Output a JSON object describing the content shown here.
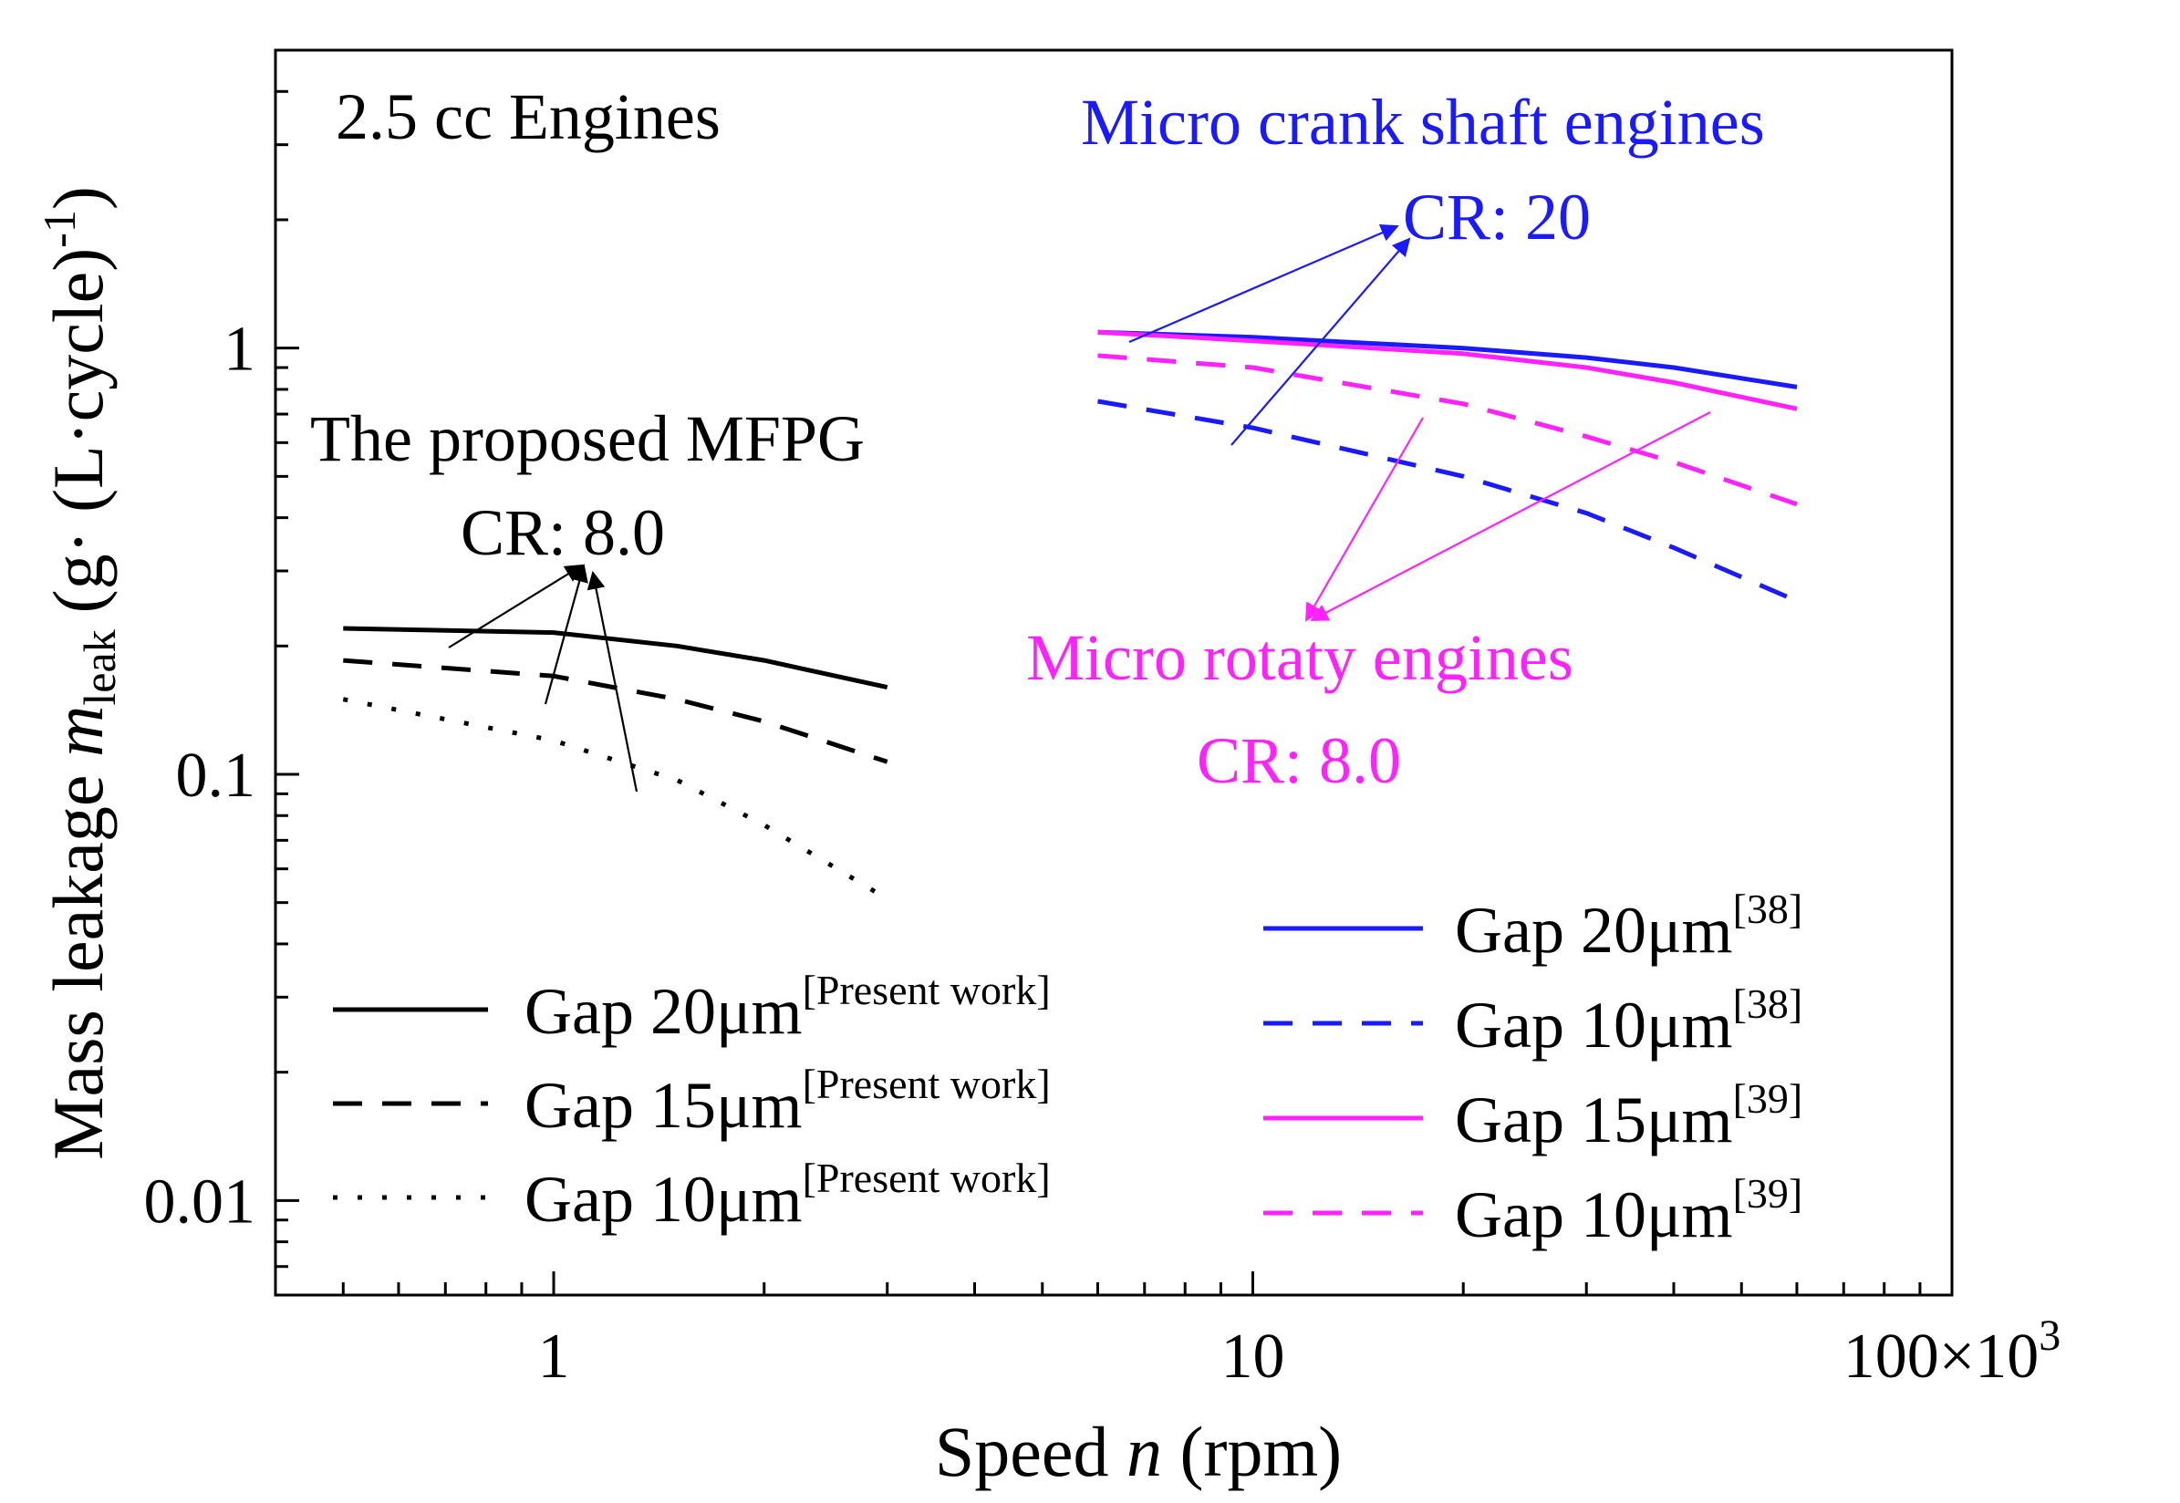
{
  "chart_data": {
    "type": "line",
    "title": "",
    "xlabel": {
      "prefix": "Speed ",
      "var": "n",
      "suffix": " (rpm)"
    },
    "ylabel": {
      "prefix": "Mass leakage ",
      "var": "m",
      "sub": "leak",
      "units": "(g· (L·cycle)",
      "units_sup": "-1",
      "units_close": ")"
    },
    "x_scale": "log",
    "y_scale": "log",
    "xlim": [
      400,
      100000
    ],
    "ylim": [
      0.006,
      5
    ],
    "x_ticks": [
      {
        "value": 1000,
        "label": "1"
      },
      {
        "value": 10000,
        "label": "10"
      },
      {
        "value": 100000,
        "label": "100×10",
        "sup": "3"
      }
    ],
    "y_ticks": [
      {
        "value": 0.01,
        "label": "0.01"
      },
      {
        "value": 0.1,
        "label": "0.1"
      },
      {
        "value": 1,
        "label": "1"
      }
    ],
    "series": [
      {
        "name": "Gap 20μm",
        "ref": "[Present work]",
        "color": "#000000",
        "style": "solid",
        "x": [
          500,
          1000,
          1500,
          2000,
          3000
        ],
        "y": [
          0.22,
          0.215,
          0.2,
          0.185,
          0.16
        ]
      },
      {
        "name": "Gap 15μm",
        "ref": "[Present work]",
        "color": "#000000",
        "style": "dashed",
        "x": [
          500,
          1000,
          1500,
          2000,
          3000
        ],
        "y": [
          0.185,
          0.17,
          0.15,
          0.133,
          0.107
        ]
      },
      {
        "name": "Gap 10μm",
        "ref": "[Present work]",
        "color": "#000000",
        "style": "dotted",
        "x": [
          500,
          1000,
          1500,
          2000,
          3000
        ],
        "y": [
          0.15,
          0.12,
          0.097,
          0.076,
          0.051
        ]
      },
      {
        "name": "Gap 20μm",
        "ref": "[38]",
        "color": "#1a1aff",
        "style": "solid",
        "x": [
          6000,
          10000,
          20000,
          30000,
          40000,
          60000
        ],
        "y": [
          1.09,
          1.06,
          1.0,
          0.95,
          0.9,
          0.81
        ]
      },
      {
        "name": "Gap 10μm",
        "ref": "[38]",
        "color": "#1a1aff",
        "style": "dashed",
        "x": [
          6000,
          10000,
          20000,
          30000,
          40000,
          60000
        ],
        "y": [
          0.75,
          0.65,
          0.5,
          0.41,
          0.34,
          0.255
        ]
      },
      {
        "name": "Gap 15μm",
        "ref": "[39]",
        "color": "#ff22ff",
        "style": "solid",
        "x": [
          6000,
          10000,
          20000,
          30000,
          40000,
          60000
        ],
        "y": [
          1.09,
          1.04,
          0.97,
          0.9,
          0.83,
          0.72
        ]
      },
      {
        "name": "Gap 10μm",
        "ref": "[39]",
        "color": "#ff22ff",
        "style": "dashed",
        "x": [
          6000,
          10000,
          20000,
          30000,
          40000,
          60000
        ],
        "y": [
          0.96,
          0.9,
          0.74,
          0.62,
          0.54,
          0.43
        ]
      }
    ],
    "annotations": [
      {
        "id": "engine-size",
        "text": "2.5 cc Engines",
        "color": "#000000"
      },
      {
        "id": "crank-title",
        "text": "Micro crank shaft engines",
        "color": "#1a1aff"
      },
      {
        "id": "crank-cr",
        "text": "CR: 20",
        "color": "#1a1aff"
      },
      {
        "id": "mfpg-title",
        "text": "The proposed MFPG",
        "color": "#000000"
      },
      {
        "id": "mfpg-cr",
        "text": "CR: 8.0",
        "color": "#000000"
      },
      {
        "id": "rotary-title",
        "text": "Micro rotaty engines",
        "color": "#ff22ff"
      },
      {
        "id": "rotary-cr",
        "text": "CR: 8.0",
        "color": "#ff22ff"
      }
    ]
  }
}
